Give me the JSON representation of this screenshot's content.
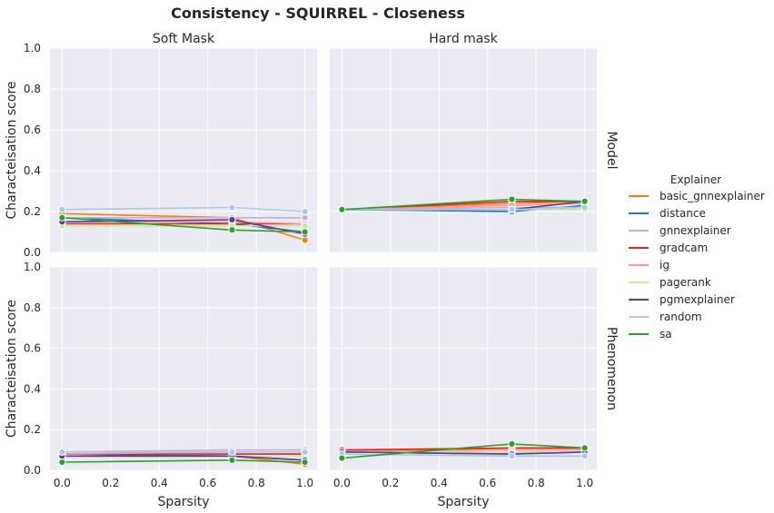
{
  "chart_data": {
    "type": "line",
    "title": "Consistency - SQUIRREL - Closeness",
    "xlabel": "Sparsity",
    "ylabel": "Characteisation score",
    "xlim": [
      -0.05,
      1.05
    ],
    "ylim": [
      0,
      1.0
    ],
    "xticks": [
      "0.0",
      "0.2",
      "0.4",
      "0.6",
      "0.8",
      "1.0"
    ],
    "yticks": [
      "0.0",
      "0.2",
      "0.4",
      "0.6",
      "0.8",
      "1.0"
    ],
    "grid": true,
    "legend_title": "Explainer",
    "legend_position": "right",
    "columns": [
      "Soft Mask",
      "Hard mask"
    ],
    "rows": [
      "Model",
      "Phenomenon"
    ],
    "x": [
      0.0,
      0.7,
      1.0
    ],
    "series_meta": [
      {
        "name": "basic_gnnexplainer",
        "color": "#ff7f0e"
      },
      {
        "name": "distance",
        "color": "#1f77b4"
      },
      {
        "name": "gnnexplainer",
        "color": "#c5b0d5"
      },
      {
        "name": "gradcam",
        "color": "#d62728"
      },
      {
        "name": "ig",
        "color": "#ff9896"
      },
      {
        "name": "pagerank",
        "color": "#c7e9a0"
      },
      {
        "name": "pgmexplainer",
        "color": "#5e3c99"
      },
      {
        "name": "random",
        "color": "#aec7e8"
      },
      {
        "name": "sa",
        "color": "#2ca02c"
      }
    ],
    "panels": [
      {
        "row": "Model",
        "column": "Soft Mask",
        "series": [
          {
            "name": "basic_gnnexplainer",
            "values": [
              0.19,
              0.17,
              0.06
            ]
          },
          {
            "name": "distance",
            "values": [
              0.17,
              0.14,
              0.1
            ]
          },
          {
            "name": "gnnexplainer",
            "values": [
              0.17,
              0.17,
              0.17
            ]
          },
          {
            "name": "gradcam",
            "values": [
              0.14,
              0.14,
              0.14
            ]
          },
          {
            "name": "ig",
            "values": [
              0.15,
              0.15,
              0.14
            ]
          },
          {
            "name": "pagerank",
            "values": [
              0.13,
              0.13,
              0.13
            ]
          },
          {
            "name": "pgmexplainer",
            "values": [
              0.15,
              0.16,
              0.09
            ]
          },
          {
            "name": "random",
            "values": [
              0.21,
              0.22,
              0.2
            ]
          },
          {
            "name": "sa",
            "values": [
              0.17,
              0.11,
              0.1
            ]
          }
        ]
      },
      {
        "row": "Model",
        "column": "Hard mask",
        "series": [
          {
            "name": "basic_gnnexplainer",
            "values": [
              0.21,
              0.24,
              0.25
            ]
          },
          {
            "name": "distance",
            "values": [
              0.21,
              0.2,
              0.23
            ]
          },
          {
            "name": "gnnexplainer",
            "values": [
              0.21,
              0.22,
              0.22
            ]
          },
          {
            "name": "gradcam",
            "values": [
              0.21,
              0.25,
              0.25
            ]
          },
          {
            "name": "ig",
            "values": [
              0.21,
              0.23,
              0.24
            ]
          },
          {
            "name": "pagerank",
            "values": [
              0.21,
              0.21,
              0.21
            ]
          },
          {
            "name": "pgmexplainer",
            "values": [
              0.21,
              0.21,
              0.25
            ]
          },
          {
            "name": "random",
            "values": [
              0.21,
              0.21,
              0.22
            ]
          },
          {
            "name": "sa",
            "values": [
              0.21,
              0.26,
              0.25
            ]
          }
        ]
      },
      {
        "row": "Phenomenon",
        "column": "Soft Mask",
        "series": [
          {
            "name": "basic_gnnexplainer",
            "values": [
              0.07,
              0.07,
              0.03
            ]
          },
          {
            "name": "distance",
            "values": [
              0.08,
              0.07,
              0.05
            ]
          },
          {
            "name": "gnnexplainer",
            "values": [
              0.09,
              0.1,
              0.1
            ]
          },
          {
            "name": "gradcam",
            "values": [
              0.08,
              0.08,
              0.08
            ]
          },
          {
            "name": "ig",
            "values": [
              0.08,
              0.09,
              0.09
            ]
          },
          {
            "name": "pagerank",
            "values": [
              0.07,
              0.07,
              0.07
            ]
          },
          {
            "name": "pgmexplainer",
            "values": [
              0.07,
              0.07,
              0.05
            ]
          },
          {
            "name": "random",
            "values": [
              0.09,
              0.09,
              0.09
            ]
          },
          {
            "name": "sa",
            "values": [
              0.04,
              0.05,
              0.04
            ]
          }
        ]
      },
      {
        "row": "Phenomenon",
        "column": "Hard mask",
        "series": [
          {
            "name": "basic_gnnexplainer",
            "values": [
              0.09,
              0.11,
              0.11
            ]
          },
          {
            "name": "distance",
            "values": [
              0.09,
              0.08,
              0.09
            ]
          },
          {
            "name": "gnnexplainer",
            "values": [
              0.09,
              0.09,
              0.09
            ]
          },
          {
            "name": "gradcam",
            "values": [
              0.1,
              0.11,
              0.11
            ]
          },
          {
            "name": "ig",
            "values": [
              0.09,
              0.1,
              0.1
            ]
          },
          {
            "name": "pagerank",
            "values": [
              0.09,
              0.09,
              0.09
            ]
          },
          {
            "name": "pgmexplainer",
            "values": [
              0.09,
              0.08,
              0.09
            ]
          },
          {
            "name": "random",
            "values": [
              0.08,
              0.07,
              0.07
            ]
          },
          {
            "name": "sa",
            "values": [
              0.06,
              0.13,
              0.11
            ]
          }
        ]
      }
    ]
  }
}
